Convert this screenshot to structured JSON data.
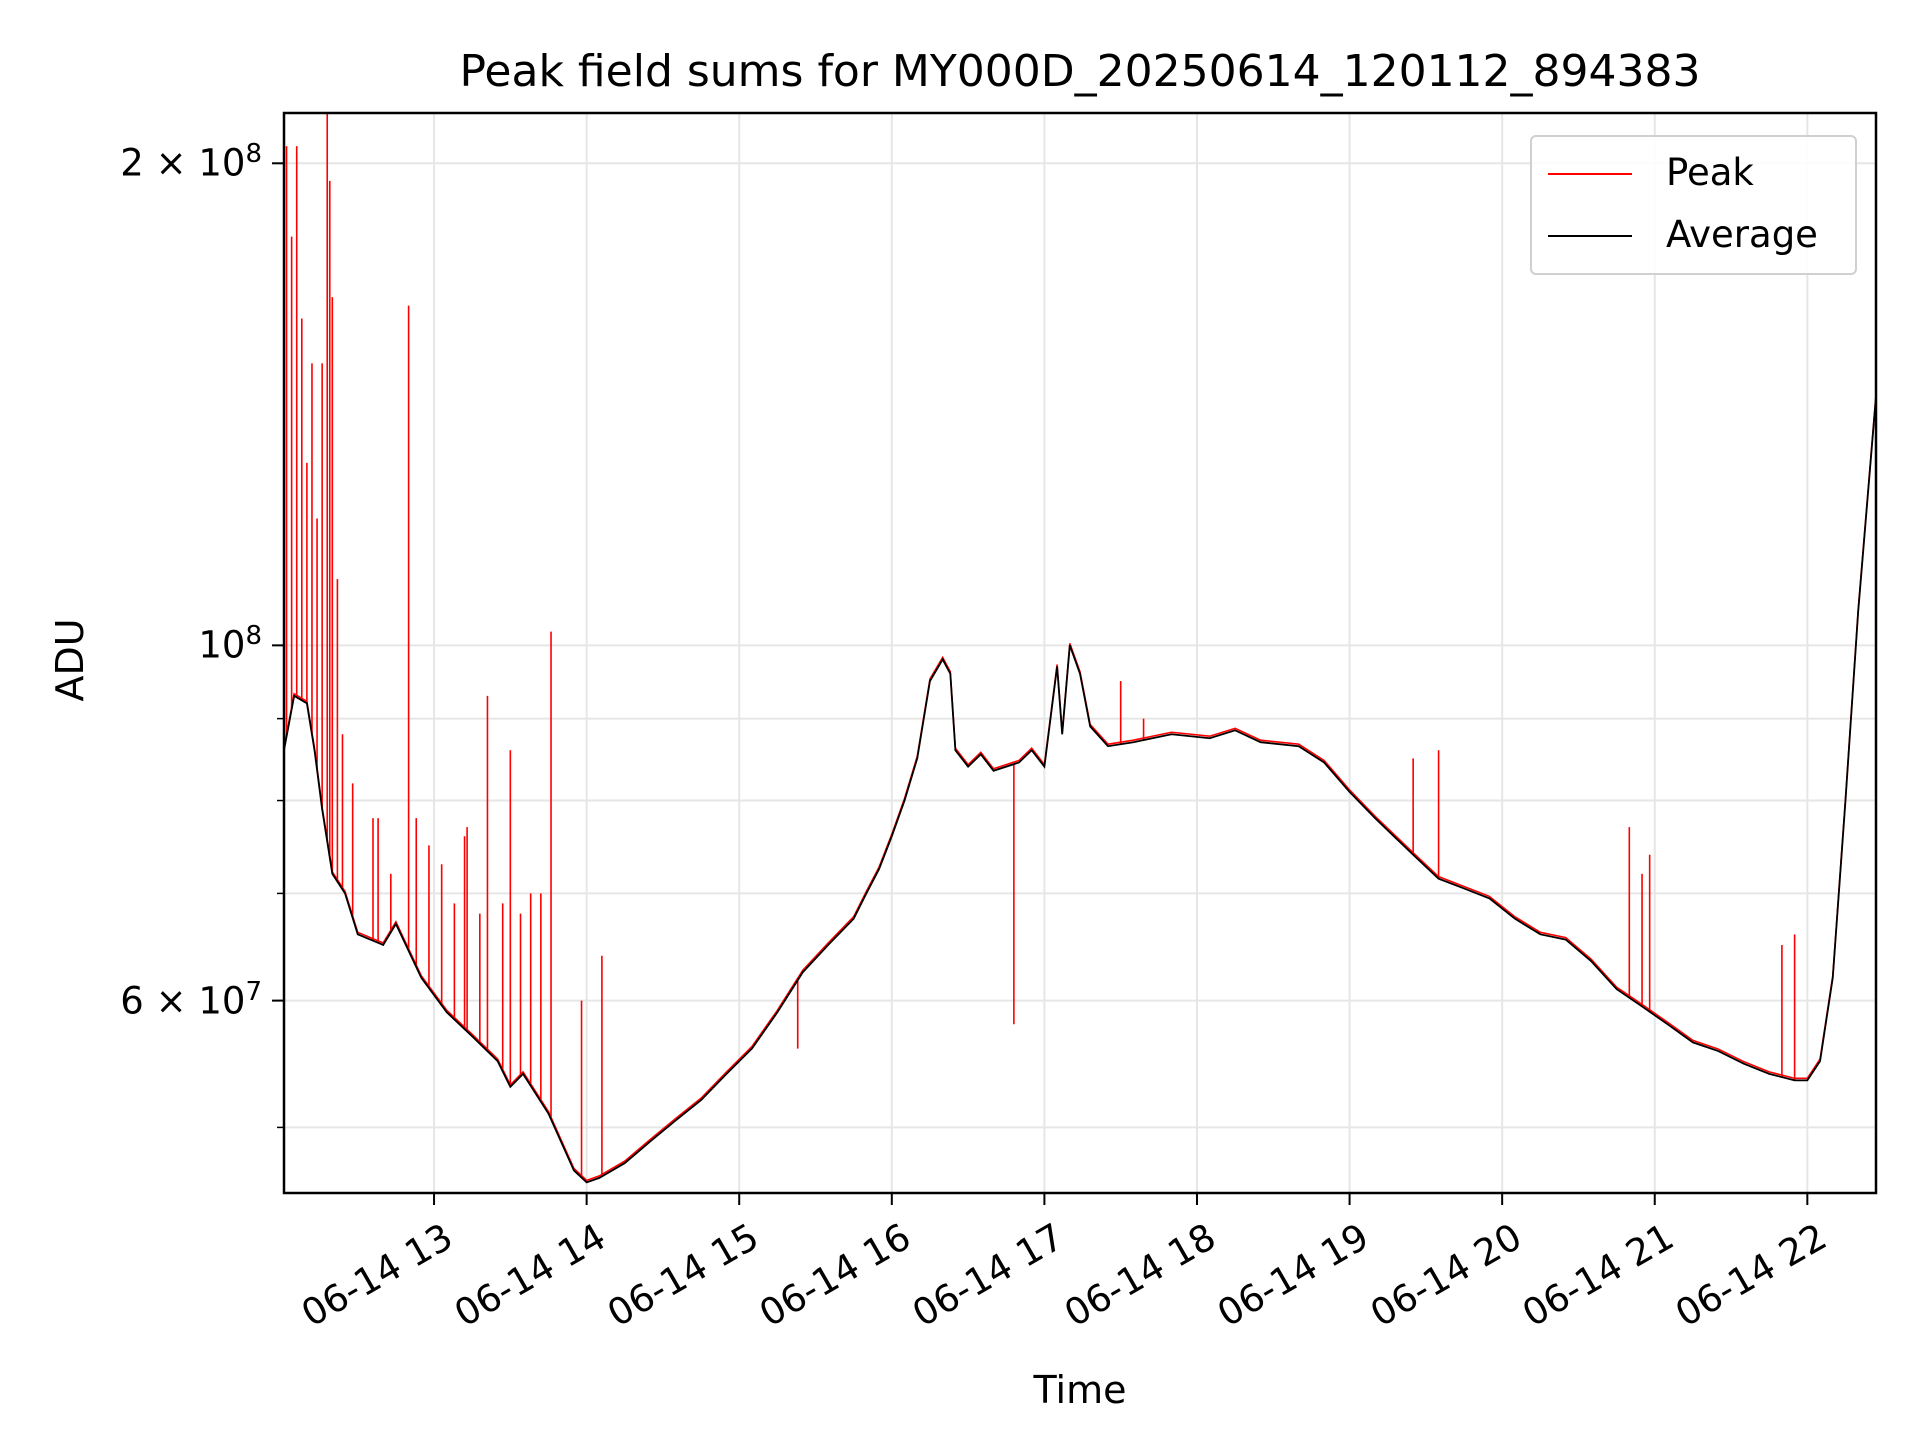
{
  "chart_data": {
    "type": "line",
    "title": "Peak field sums for MY000D_20250614_120112_894383",
    "xlabel": "Time",
    "ylabel": "ADU",
    "yscale": "log",
    "ylim": [
      45500000,
      215000000
    ],
    "xlim": [
      "2025-06-14 12:01",
      "2025-06-14 22:27"
    ],
    "grid": true,
    "legend_placement": "top-right",
    "x_ticks": [
      "06-14 13",
      "06-14 14",
      "06-14 15",
      "06-14 16",
      "06-14 17",
      "06-14 18",
      "06-14 19",
      "06-14 20",
      "06-14 21",
      "06-14 22"
    ],
    "y_ticks": [
      {
        "value": 200000000,
        "label": "2 × 10^8"
      },
      {
        "value": 100000000,
        "label": "10^8"
      },
      {
        "value": 60000000,
        "label": "6 × 10^7"
      }
    ],
    "series": [
      {
        "name": "Average",
        "color": "#000000",
        "points": [
          [
            "12:01",
            86000000
          ],
          [
            "12:05",
            93000000
          ],
          [
            "12:10",
            92000000
          ],
          [
            "12:13",
            86000000
          ],
          [
            "12:16",
            79000000
          ],
          [
            "12:20",
            72000000
          ],
          [
            "12:25",
            70000000
          ],
          [
            "12:30",
            66000000
          ],
          [
            "12:40",
            65000000
          ],
          [
            "12:45",
            67000000
          ],
          [
            "12:55",
            62000000
          ],
          [
            "13:05",
            59000000
          ],
          [
            "13:15",
            57000000
          ],
          [
            "13:25",
            55000000
          ],
          [
            "13:30",
            53000000
          ],
          [
            "13:35",
            54000000
          ],
          [
            "13:45",
            51000000
          ],
          [
            "13:55",
            47000000
          ],
          [
            "14:00",
            46200000
          ],
          [
            "14:05",
            46500000
          ],
          [
            "14:15",
            47500000
          ],
          [
            "14:25",
            49000000
          ],
          [
            "14:35",
            50500000
          ],
          [
            "14:45",
            52000000
          ],
          [
            "14:55",
            54000000
          ],
          [
            "15:05",
            56000000
          ],
          [
            "15:15",
            59000000
          ],
          [
            "15:25",
            62500000
          ],
          [
            "15:35",
            65000000
          ],
          [
            "15:45",
            67500000
          ],
          [
            "15:50",
            70000000
          ],
          [
            "15:55",
            72500000
          ],
          [
            "16:00",
            76000000
          ],
          [
            "16:05",
            80000000
          ],
          [
            "16:10",
            85000000
          ],
          [
            "16:15",
            95000000
          ],
          [
            "16:20",
            98000000
          ],
          [
            "16:23",
            96000000
          ],
          [
            "16:25",
            86000000
          ],
          [
            "16:30",
            84000000
          ],
          [
            "16:35",
            85500000
          ],
          [
            "16:40",
            83500000
          ],
          [
            "16:50",
            84500000
          ],
          [
            "16:55",
            86000000
          ],
          [
            "17:00",
            84000000
          ],
          [
            "17:05",
            97000000
          ],
          [
            "17:07",
            88000000
          ],
          [
            "17:10",
            100000000
          ],
          [
            "17:14",
            96000000
          ],
          [
            "17:18",
            89000000
          ],
          [
            "17:25",
            86500000
          ],
          [
            "17:35",
            87000000
          ],
          [
            "17:50",
            88000000
          ],
          [
            "18:05",
            87500000
          ],
          [
            "18:15",
            88500000
          ],
          [
            "18:25",
            87000000
          ],
          [
            "18:40",
            86500000
          ],
          [
            "18:50",
            84500000
          ],
          [
            "19:00",
            81000000
          ],
          [
            "19:10",
            78000000
          ],
          [
            "19:25",
            74000000
          ],
          [
            "19:35",
            71500000
          ],
          [
            "19:45",
            70500000
          ],
          [
            "19:55",
            69500000
          ],
          [
            "20:05",
            67500000
          ],
          [
            "20:15",
            66000000
          ],
          [
            "20:25",
            65500000
          ],
          [
            "20:35",
            63500000
          ],
          [
            "20:45",
            61000000
          ],
          [
            "20:55",
            59500000
          ],
          [
            "21:05",
            58000000
          ],
          [
            "21:15",
            56500000
          ],
          [
            "21:25",
            55800000
          ],
          [
            "21:35",
            54800000
          ],
          [
            "21:45",
            54000000
          ],
          [
            "21:55",
            53500000
          ],
          [
            "22:00",
            53500000
          ],
          [
            "22:05",
            55000000
          ],
          [
            "22:10",
            62000000
          ],
          [
            "22:15",
            80000000
          ],
          [
            "22:20",
            105000000
          ],
          [
            "22:27",
            143000000
          ]
        ]
      },
      {
        "name": "Peak",
        "color": "#ff0000",
        "spikes": [
          [
            "12:02",
            205000000
          ],
          [
            "12:04",
            180000000
          ],
          [
            "12:06",
            205000000
          ],
          [
            "12:08",
            160000000
          ],
          [
            "12:10",
            130000000
          ],
          [
            "12:12",
            150000000
          ],
          [
            "12:14",
            120000000
          ],
          [
            "12:16",
            150000000
          ],
          [
            "12:18",
            215000000
          ],
          [
            "12:19",
            195000000
          ],
          [
            "12:20",
            165000000
          ],
          [
            "12:22",
            110000000
          ],
          [
            "12:24",
            88000000
          ],
          [
            "12:28",
            82000000
          ],
          [
            "12:36",
            78000000
          ],
          [
            "12:38",
            78000000
          ],
          [
            "12:43",
            72000000
          ],
          [
            "12:50",
            163000000
          ],
          [
            "12:53",
            78000000
          ],
          [
            "12:58",
            75000000
          ],
          [
            "13:03",
            73000000
          ],
          [
            "13:08",
            69000000
          ],
          [
            "13:12",
            76000000
          ],
          [
            "13:13",
            77000000
          ],
          [
            "13:18",
            68000000
          ],
          [
            "13:21",
            93000000
          ],
          [
            "13:27",
            69000000
          ],
          [
            "13:30",
            86000000
          ],
          [
            "13:34",
            68000000
          ],
          [
            "13:38",
            70000000
          ],
          [
            "13:42",
            70000000
          ],
          [
            "13:46",
            102000000
          ],
          [
            "13:58",
            60000000
          ],
          [
            "14:06",
            64000000
          ],
          [
            "15:23",
            56000000
          ],
          [
            "16:48",
            58000000
          ],
          [
            "17:30",
            95000000
          ],
          [
            "17:39",
            90000000
          ],
          [
            "19:25",
            85000000
          ],
          [
            "19:35",
            86000000
          ],
          [
            "20:50",
            77000000
          ],
          [
            "20:55",
            72000000
          ],
          [
            "20:58",
            74000000
          ],
          [
            "21:50",
            65000000
          ],
          [
            "21:55",
            66000000
          ]
        ]
      }
    ]
  },
  "legend": {
    "items": [
      {
        "name": "Peak",
        "color": "#ff0000"
      },
      {
        "name": "Average",
        "color": "#000000"
      }
    ]
  }
}
